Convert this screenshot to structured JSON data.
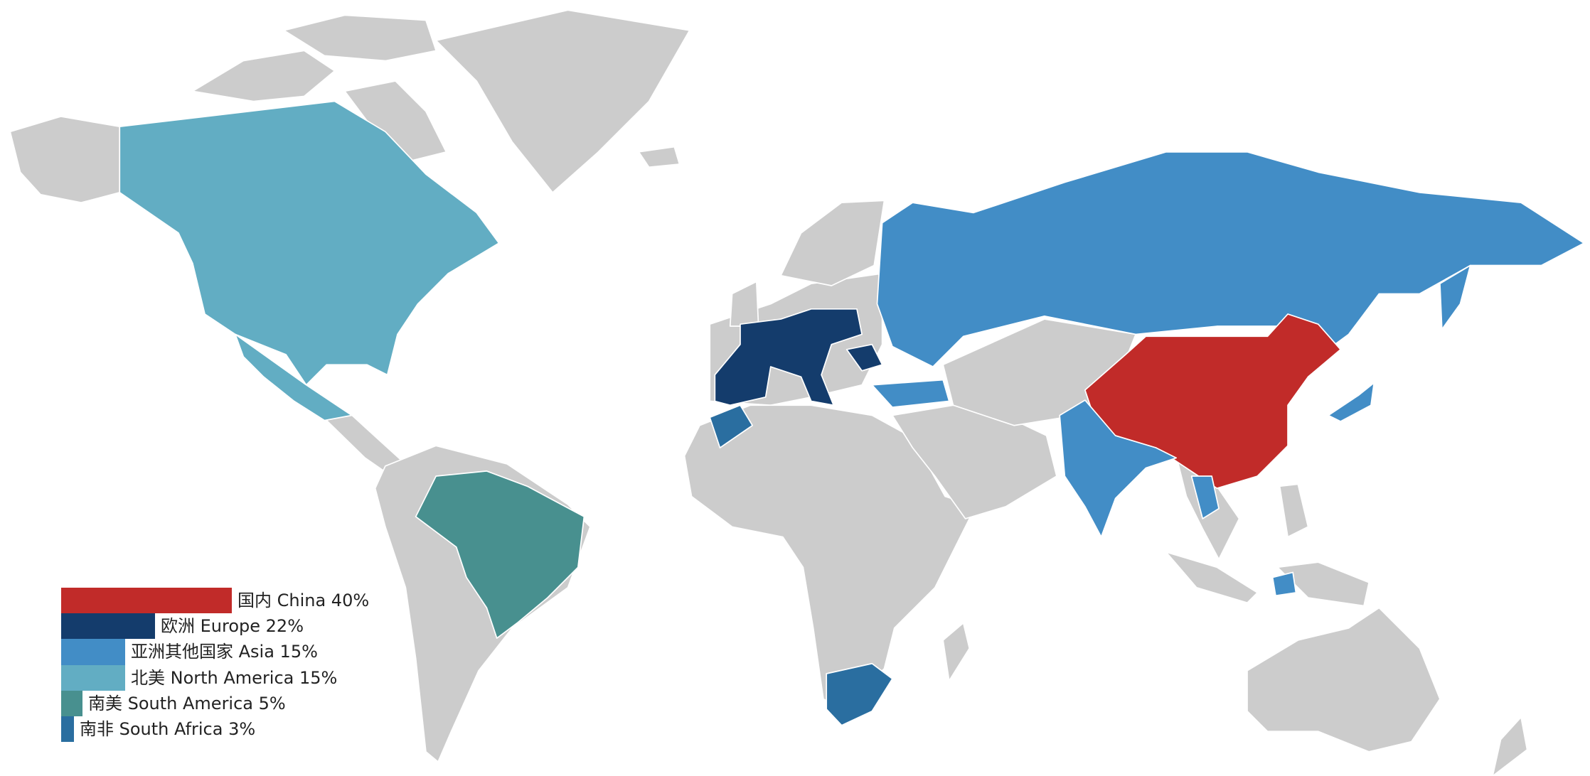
{
  "map": {
    "base_color": "#cccccc",
    "border_color": "#ffffff"
  },
  "legend": {
    "scale_max": 40,
    "items": [
      {
        "label": "国内 China 40%",
        "value": 40,
        "color": "#c12b29"
      },
      {
        "label": "欧洲 Europe 22%",
        "value": 22,
        "color": "#143c6c"
      },
      {
        "label": "亚洲其他国家 Asia 15%",
        "value": 15,
        "color": "#428dc6"
      },
      {
        "label": "北美 North America 15%",
        "value": 15,
        "color": "#62adc3"
      },
      {
        "label": "南美 South America 5%",
        "value": 5,
        "color": "#48908f"
      },
      {
        "label": "南非 South Africa 3%",
        "value": 3,
        "color": "#2a6ea0"
      }
    ]
  }
}
